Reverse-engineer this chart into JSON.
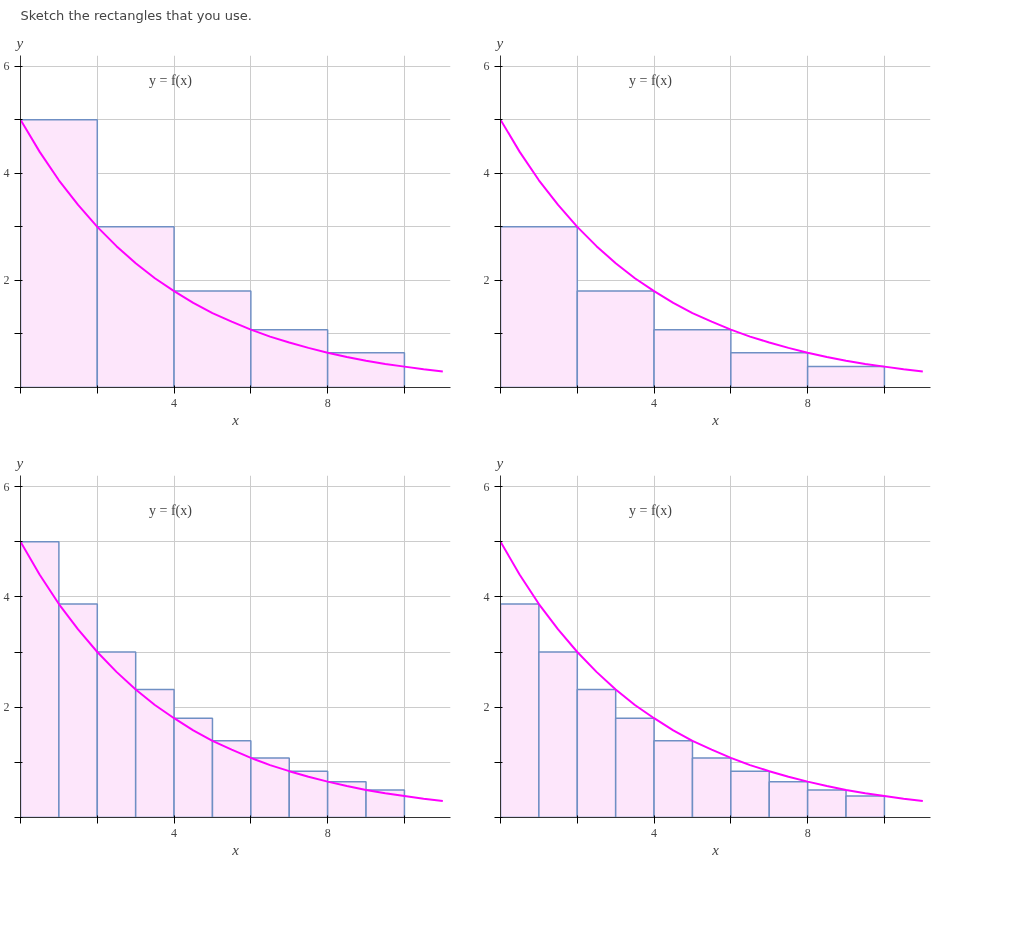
{
  "chart_data": [
    {
      "type": "histogram",
      "title": "Sketch the rectangles that you use.",
      "xlabel": "x",
      "ylabel": "y",
      "xlim": [
        0,
        11.2
      ],
      "ylim": [
        0,
        6.2
      ],
      "xticks": [
        {
          "value": 0,
          "label": null
        },
        {
          "value": 2,
          "label": null
        },
        4,
        {
          "value": 6,
          "label": null
        },
        8,
        {
          "value": 10,
          "label": null
        }
      ],
      "yticks": [
        {
          "value": 0,
          "label": null
        },
        {
          "value": 1,
          "label": null
        },
        2,
        {
          "value": 3,
          "label": null
        },
        4,
        {
          "value": 5,
          "label": null
        },
        6
      ],
      "grid": true,
      "annotations": [
        "y = f(x)"
      ],
      "series": [
        {
          "color": "#fde6fb",
          "bins": [
            0,
            2,
            4,
            6,
            8,
            10
          ],
          "values": [
            5,
            3,
            1.8,
            1.08,
            0.65
          ]
        },
        {
          "type": "line",
          "color": "#ff00ff",
          "x": [
            0,
            0.5,
            1,
            1.5,
            2,
            2.5,
            3,
            3.5,
            4,
            4.5,
            5,
            5.5,
            6,
            6.5,
            7,
            7.5,
            8,
            8.5,
            9,
            9.5,
            10,
            10.5,
            11
          ],
          "values": [
            5,
            4.4,
            3.87,
            3.41,
            3,
            2.64,
            2.32,
            2.04,
            1.8,
            1.58,
            1.39,
            1.23,
            1.08,
            0.95,
            0.84,
            0.74,
            0.65,
            0.57,
            0.5,
            0.44,
            0.39,
            0.34,
            0.3
          ]
        }
      ]
    },
    {
      "type": "histogram",
      "xlabel": "x",
      "ylabel": "y",
      "xlim": [
        0,
        11.2
      ],
      "ylim": [
        0,
        6.2
      ],
      "xticks": [
        {
          "value": 0,
          "label": null
        },
        {
          "value": 2,
          "label": null
        },
        4,
        {
          "value": 6,
          "label": null
        },
        8,
        {
          "value": 10,
          "label": null
        }
      ],
      "yticks": [
        {
          "value": 0,
          "label": null
        },
        {
          "value": 1,
          "label": null
        },
        2,
        {
          "value": 3,
          "label": null
        },
        4,
        {
          "value": 5,
          "label": null
        },
        6
      ],
      "grid": true,
      "annotations": [
        "y = f(x)"
      ],
      "series": [
        {
          "color": "#fde6fb",
          "bins": [
            0,
            2,
            4,
            6,
            8,
            10
          ],
          "values": [
            3,
            1.8,
            1.08,
            0.65,
            0.39
          ]
        },
        {
          "type": "line",
          "color": "#ff00ff",
          "x": [
            0,
            0.5,
            1,
            1.5,
            2,
            2.5,
            3,
            3.5,
            4,
            4.5,
            5,
            5.5,
            6,
            6.5,
            7,
            7.5,
            8,
            8.5,
            9,
            9.5,
            10,
            10.5,
            11
          ],
          "values": [
            5,
            4.4,
            3.87,
            3.41,
            3,
            2.64,
            2.32,
            2.04,
            1.8,
            1.58,
            1.39,
            1.23,
            1.08,
            0.95,
            0.84,
            0.74,
            0.65,
            0.57,
            0.5,
            0.44,
            0.39,
            0.34,
            0.3
          ]
        }
      ]
    },
    {
      "type": "histogram",
      "xlabel": "x",
      "ylabel": "y",
      "xlim": [
        0,
        11.2
      ],
      "ylim": [
        0,
        6.2
      ],
      "xticks": [
        {
          "value": 0,
          "label": null
        },
        {
          "value": 2,
          "label": null
        },
        4,
        {
          "value": 6,
          "label": null
        },
        8,
        {
          "value": 10,
          "label": null
        }
      ],
      "yticks": [
        {
          "value": 0,
          "label": null
        },
        {
          "value": 1,
          "label": null
        },
        2,
        {
          "value": 3,
          "label": null
        },
        4,
        {
          "value": 5,
          "label": null
        },
        6
      ],
      "grid": true,
      "annotations": [
        "y = f(x)"
      ],
      "series": [
        {
          "color": "#fde6fb",
          "bins": [
            0,
            1,
            2,
            3,
            4,
            5,
            6,
            7,
            8,
            9,
            10
          ],
          "values": [
            5,
            3.87,
            3,
            2.32,
            1.8,
            1.39,
            1.08,
            0.84,
            0.65,
            0.5
          ]
        },
        {
          "type": "line",
          "color": "#ff00ff",
          "x": [
            0,
            0.5,
            1,
            1.5,
            2,
            2.5,
            3,
            3.5,
            4,
            4.5,
            5,
            5.5,
            6,
            6.5,
            7,
            7.5,
            8,
            8.5,
            9,
            9.5,
            10,
            10.5,
            11
          ],
          "values": [
            5,
            4.4,
            3.87,
            3.41,
            3,
            2.64,
            2.32,
            2.04,
            1.8,
            1.58,
            1.39,
            1.23,
            1.08,
            0.95,
            0.84,
            0.74,
            0.65,
            0.57,
            0.5,
            0.44,
            0.39,
            0.34,
            0.3
          ]
        }
      ]
    },
    {
      "type": "histogram",
      "xlabel": "x",
      "ylabel": "y",
      "xlim": [
        0,
        11.2
      ],
      "ylim": [
        0,
        6.2
      ],
      "xticks": [
        {
          "value": 0,
          "label": null
        },
        {
          "value": 2,
          "label": null
        },
        4,
        {
          "value": 6,
          "label": null
        },
        8,
        {
          "value": 10,
          "label": null
        }
      ],
      "yticks": [
        {
          "value": 0,
          "label": null
        },
        {
          "value": 1,
          "label": null
        },
        2,
        {
          "value": 3,
          "label": null
        },
        4,
        {
          "value": 5,
          "label": null
        },
        6
      ],
      "grid": true,
      "annotations": [
        "y = f(x)"
      ],
      "series": [
        {
          "color": "#fde6fb",
          "bins": [
            0,
            1,
            2,
            3,
            4,
            5,
            6,
            7,
            8,
            9,
            10
          ],
          "values": [
            3.87,
            3,
            2.32,
            1.8,
            1.39,
            1.08,
            0.84,
            0.65,
            0.5,
            0.39
          ]
        },
        {
          "type": "line",
          "color": "#ff00ff",
          "x": [
            0,
            0.5,
            1,
            1.5,
            2,
            2.5,
            3,
            3.5,
            4,
            4.5,
            5,
            5.5,
            6,
            6.5,
            7,
            7.5,
            8,
            8.5,
            9,
            9.5,
            10,
            10.5,
            11
          ],
          "values": [
            5,
            4.4,
            3.87,
            3.41,
            3,
            2.64,
            2.32,
            2.04,
            1.8,
            1.58,
            1.39,
            1.23,
            1.08,
            0.95,
            0.84,
            0.74,
            0.65,
            0.57,
            0.5,
            0.44,
            0.39,
            0.34,
            0.3
          ]
        }
      ]
    }
  ]
}
